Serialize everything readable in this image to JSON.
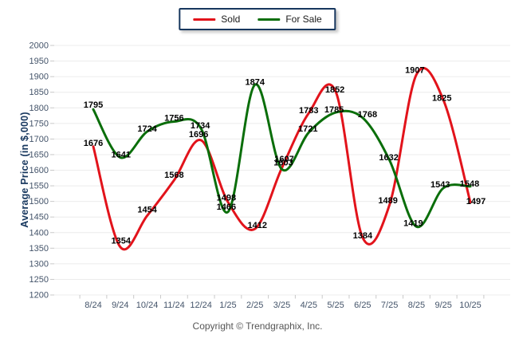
{
  "legend": {
    "items": [
      {
        "label": "Sold",
        "color": "#e2131b"
      },
      {
        "label": "For Sale",
        "color": "#0a6e0a"
      }
    ]
  },
  "chart_data": {
    "type": "line",
    "title": "",
    "ylabel": "Average Price (in $,000)",
    "xlabel": "",
    "ylim": [
      1200,
      2000
    ],
    "yticks": [
      1200,
      1250,
      1300,
      1350,
      1400,
      1450,
      1500,
      1550,
      1600,
      1650,
      1700,
      1750,
      1800,
      1850,
      1900,
      1950,
      2000
    ],
    "x": [
      "8/24",
      "9/24",
      "10/24",
      "11/24",
      "12/24",
      "1/25",
      "2/25",
      "3/25",
      "4/25",
      "5/25",
      "6/25",
      "7/25",
      "8/25",
      "9/25",
      "10/25"
    ],
    "series": [
      {
        "name": "Sold",
        "color": "#e2131b",
        "values": [
          1676,
          1354,
          1454,
          1568,
          1696,
          1498,
          1412,
          1607,
          1783,
          1852,
          1384,
          1489,
          1907,
          1825,
          1497
        ]
      },
      {
        "name": "For Sale",
        "color": "#0a6e0a",
        "values": [
          1795,
          1641,
          1724,
          1756,
          1734,
          1466,
          1874,
          1603,
          1721,
          1785,
          1768,
          1632,
          1419,
          1543,
          1548
        ]
      }
    ],
    "grid": "horizontal",
    "legend_position": "top-center",
    "smooth": true,
    "data_labels": true
  },
  "footer": {
    "copyright": "Copyright © Trendgraphix, Inc."
  },
  "colors": {
    "axis_text": "#44546A",
    "axis_title": "#17375E",
    "grid": "#ececec",
    "tick": "#c8c8c8",
    "data_label": "#000000",
    "legend_border": "#17375E",
    "background": "#ffffff"
  }
}
